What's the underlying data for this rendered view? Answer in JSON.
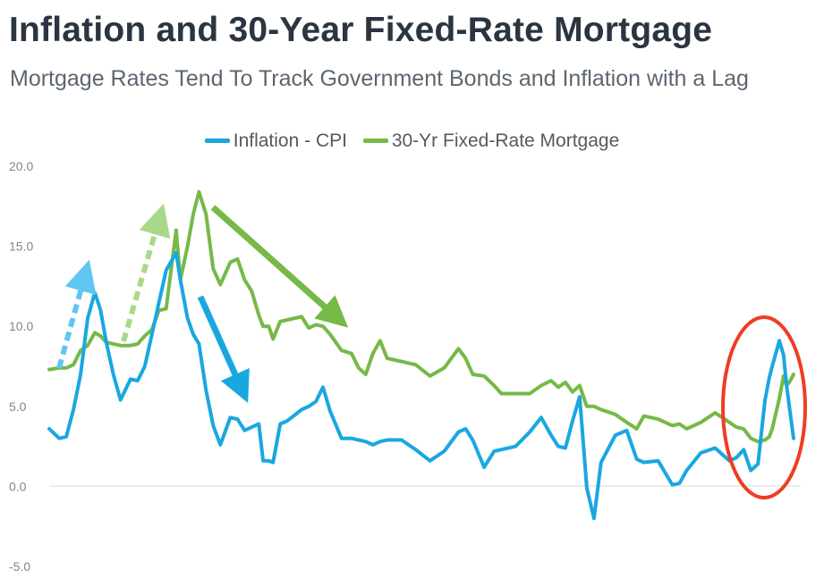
{
  "header": {
    "title": "Inflation and 30-Year Fixed-Rate Mortgage",
    "subtitle": "Mortgage Rates Tend To Track Government Bonds and Inflation with a Lag"
  },
  "chart_data": {
    "type": "line",
    "title": "Inflation and 30-Year Fixed-Rate Mortgage",
    "subtitle": "Mortgage Rates Tend To Track Government Bonds and Inflation with a Lag",
    "xlabel": "",
    "ylabel": "",
    "ylim": [
      -5,
      20
    ],
    "yticks": [
      "20.0",
      "15.0",
      "10.0",
      "5.0",
      "0.0",
      "-5.0"
    ],
    "x_axis_labels_shown": false,
    "grid": false,
    "legend_position": "top-center",
    "x": [
      1971.3,
      1972,
      1972.5,
      1973,
      1973.5,
      1974,
      1974.5,
      1974.9,
      1975.3,
      1975.8,
      1976.3,
      1977,
      1977.5,
      1978,
      1978.5,
      1979,
      1979.5,
      1980.2,
      1980.5,
      1981,
      1981.4,
      1981.8,
      1982.3,
      1982.8,
      1983.3,
      1984,
      1984.5,
      1985,
      1985.5,
      1986,
      1986.3,
      1986.7,
      1987,
      1987.5,
      1988,
      1989,
      1989.5,
      1990,
      1990.5,
      1991,
      1991.8,
      1992.5,
      1993,
      1993.5,
      1994,
      1994.5,
      1995,
      1996,
      1997,
      1998,
      1999,
      2000,
      2000.5,
      2001,
      2001.8,
      2002.5,
      2003,
      2004,
      2005,
      2005.8,
      2006.5,
      2007,
      2007.5,
      2008,
      2008.5,
      2009,
      2009.5,
      2010,
      2011,
      2011.8,
      2012.5,
      2013,
      2014,
      2015,
      2015.5,
      2016,
      2017,
      2018,
      2019,
      2019.5,
      2020,
      2020.5,
      2021,
      2021.5,
      2021.8,
      2022,
      2022.5,
      2022.8,
      2023,
      2023.2,
      2023.5
    ],
    "series": [
      {
        "name": "Inflation - CPI",
        "color": "#1aa7e0",
        "values": [
          3.6,
          3.0,
          3.1,
          4.8,
          7.0,
          10.5,
          12.1,
          11.0,
          9.0,
          7.0,
          5.4,
          6.7,
          6.6,
          7.5,
          9.5,
          11.5,
          13.5,
          14.6,
          12.9,
          10.5,
          9.5,
          8.9,
          6.0,
          3.8,
          2.6,
          4.3,
          4.2,
          3.5,
          3.7,
          3.9,
          1.6,
          1.6,
          1.5,
          3.9,
          4.1,
          4.8,
          5.0,
          5.3,
          6.2,
          4.7,
          3.0,
          3.0,
          2.9,
          2.8,
          2.6,
          2.8,
          2.9,
          2.9,
          2.3,
          1.6,
          2.2,
          3.4,
          3.6,
          2.9,
          1.2,
          2.2,
          2.3,
          2.5,
          3.4,
          4.3,
          3.2,
          2.5,
          2.4,
          4.1,
          5.6,
          -0.1,
          -2.0,
          1.5,
          3.2,
          3.5,
          1.7,
          1.5,
          1.6,
          0.1,
          0.2,
          1.0,
          2.1,
          2.4,
          1.6,
          1.8,
          2.3,
          1.0,
          1.4,
          5.4,
          6.8,
          7.5,
          9.1,
          8.2,
          6.4,
          5.0,
          3.0
        ]
      },
      {
        "name": "30-Yr Fixed-Rate Mortgage",
        "color": "#76b947",
        "values": [
          7.3,
          7.4,
          7.4,
          7.6,
          8.5,
          8.8,
          9.6,
          9.4,
          9.0,
          8.9,
          8.8,
          8.8,
          8.9,
          9.4,
          9.8,
          11.0,
          11.1,
          16.0,
          12.9,
          15.0,
          17.0,
          18.4,
          17.0,
          13.6,
          12.6,
          14.0,
          14.2,
          12.9,
          12.2,
          10.7,
          10.0,
          10.0,
          9.2,
          10.3,
          10.4,
          10.6,
          9.9,
          10.1,
          10.0,
          9.5,
          8.5,
          8.3,
          7.4,
          7.0,
          8.3,
          9.1,
          8.0,
          7.8,
          7.6,
          6.9,
          7.4,
          8.6,
          8.0,
          7.0,
          6.9,
          6.3,
          5.8,
          5.8,
          5.8,
          6.3,
          6.6,
          6.2,
          6.5,
          5.9,
          6.3,
          5.0,
          5.0,
          4.8,
          4.5,
          4.0,
          3.6,
          4.4,
          4.2,
          3.8,
          3.9,
          3.6,
          4.0,
          4.6,
          4.0,
          3.7,
          3.6,
          3.0,
          2.8,
          2.9,
          3.1,
          3.6,
          5.5,
          6.9,
          6.3,
          6.5,
          7.0
        ]
      }
    ]
  }
}
